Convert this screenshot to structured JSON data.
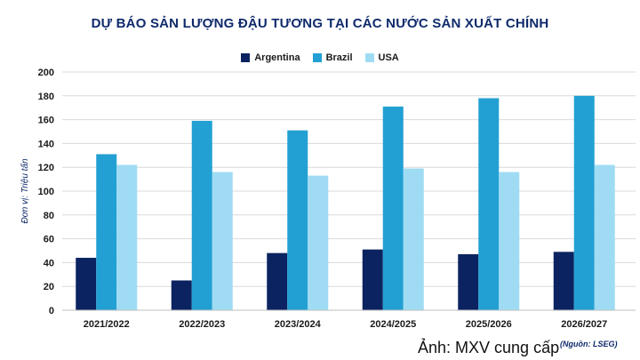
{
  "colors": {
    "argentina": "#0b2360",
    "brazil": "#22a0d3",
    "usa": "#9fdcf4",
    "grid": "#d9d9d9",
    "axis_text": "#1a1a1a",
    "title": "#0f2a6b"
  },
  "caption": "Ảnh: MXV cung cấp",
  "source": "(Nguồn: LSEG)",
  "chart_data": {
    "type": "bar",
    "title": "DỰ BÁO SẢN LƯỢNG ĐẬU TƯƠNG TẠI CÁC NƯỚC SẢN XUẤT CHÍNH",
    "ylabel": "Đơn vị: Triệu tấn",
    "xlabel": "",
    "ylim": [
      0,
      200
    ],
    "yticks": [
      0,
      20,
      40,
      60,
      80,
      100,
      120,
      140,
      160,
      180,
      200
    ],
    "grid": true,
    "legend": "top-center",
    "categories": [
      "2021/2022",
      "2022/2023",
      "2023/2024",
      "2024/2025",
      "2025/2026",
      "2026/2027"
    ],
    "series": [
      {
        "name": "Argentina",
        "values": [
          44,
          25,
          48,
          51,
          47,
          49
        ]
      },
      {
        "name": "Brazil",
        "values": [
          131,
          159,
          151,
          171,
          178,
          180
        ]
      },
      {
        "name": "USA",
        "values": [
          122,
          116,
          113,
          119,
          116,
          122
        ]
      }
    ]
  }
}
